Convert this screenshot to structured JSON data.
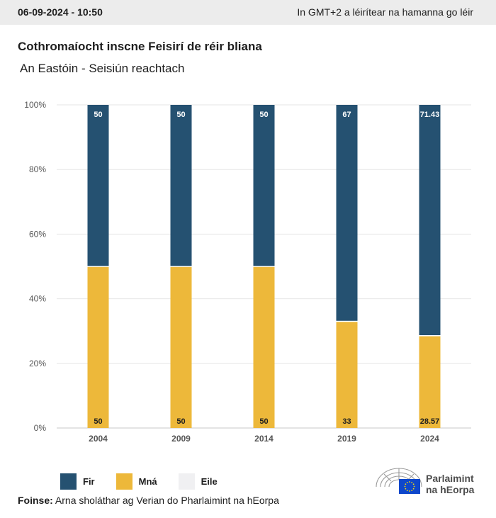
{
  "header": {
    "timestamp": "06-09-2024 - 10:50",
    "timezone_note": "In GMT+2 a léirítear na hamanna go léir"
  },
  "chart_data": {
    "type": "bar",
    "stacked": true,
    "title": "Cothromaíocht inscne Feisirí de réir bliana",
    "subtitle": "An Eastóin - Seisiún reachtach",
    "categories": [
      "2004",
      "2009",
      "2014",
      "2019",
      "2024"
    ],
    "series": [
      {
        "name": "Mná",
        "color": "#edb83a",
        "values": [
          50,
          50,
          50,
          33,
          28.57
        ],
        "labels": [
          "50",
          "50",
          "50",
          "33",
          "28.57"
        ]
      },
      {
        "name": "Fir",
        "color": "#255171",
        "values": [
          50,
          50,
          50,
          67,
          71.43
        ],
        "labels": [
          "50",
          "50",
          "50",
          "67",
          "71.43"
        ]
      },
      {
        "name": "Eile",
        "color": "#f0f0f2",
        "values": [
          0,
          0,
          0,
          0,
          0
        ],
        "labels": []
      }
    ],
    "y_ticks": [
      "0%",
      "20%",
      "40%",
      "60%",
      "80%",
      "100%"
    ],
    "ylim": [
      0,
      100
    ],
    "grid": true,
    "legend_position": "bottom-left"
  },
  "legend": [
    {
      "label": "Fir",
      "color": "#255171"
    },
    {
      "label": "Mná",
      "color": "#edb83a"
    },
    {
      "label": "Eile",
      "color": "#f0f0f2"
    }
  ],
  "footer": {
    "source_label": "Foinse:",
    "source_text": "Arna sholáthar ag Verian do Pharlaimint na hEorpa"
  },
  "logo": {
    "line1": "Parlaimint",
    "line2": "na hEorpa",
    "flag_color": "#0e47cb",
    "star_color": "#ffdd00"
  }
}
